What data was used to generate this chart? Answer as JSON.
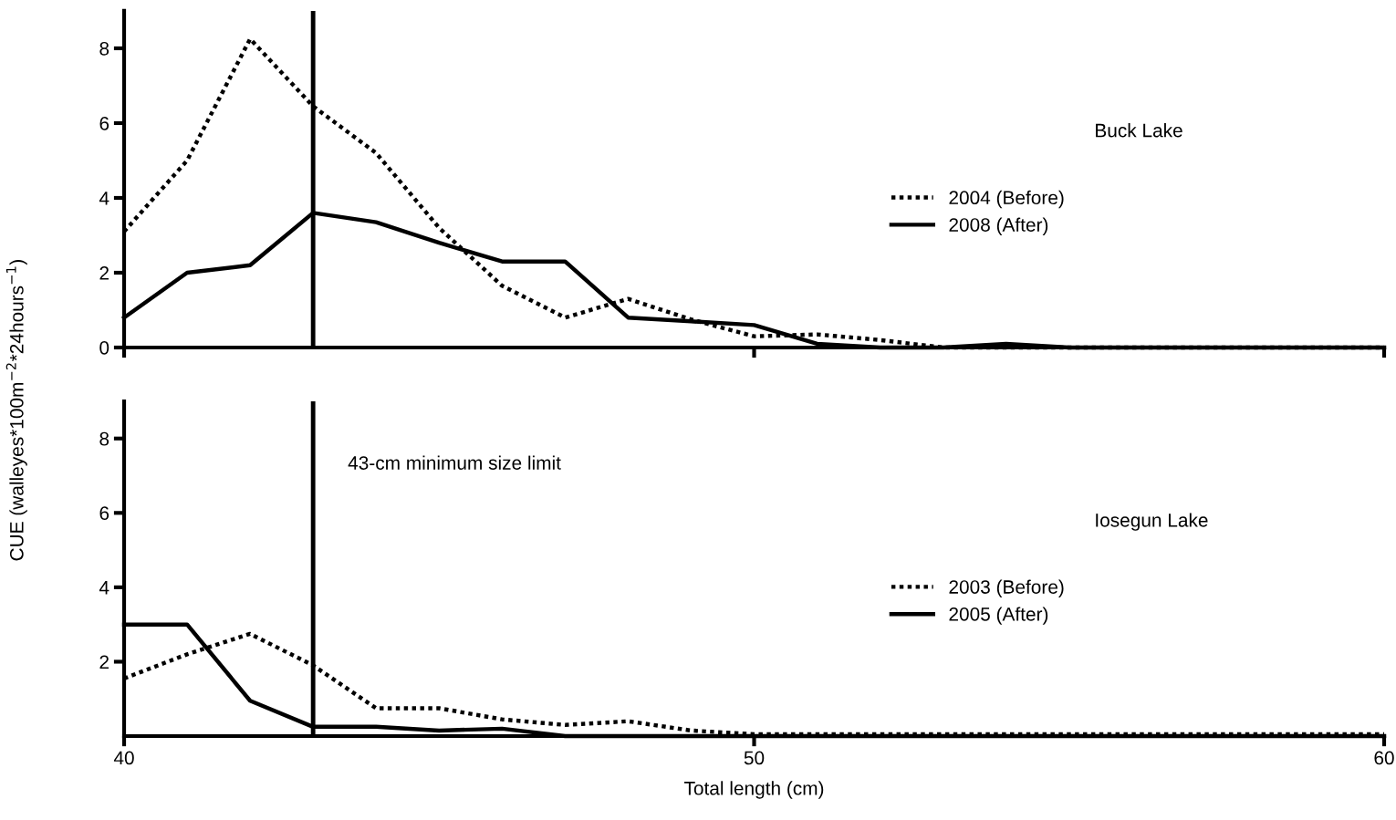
{
  "chart_data": [
    {
      "type": "line",
      "ylabel": "CUE (walleyes*100m$^{−2}$*24hours$^{−1}$)",
      "annotations": [
        "Buck Lake"
      ],
      "x": [
        40,
        41,
        42,
        43,
        44,
        45,
        46,
        47,
        48,
        49,
        50,
        51,
        52,
        53,
        54,
        55,
        56,
        57,
        58,
        59,
        60
      ],
      "series": [
        {
          "name": "2004 (Before)",
          "color": "#000000",
          "line_style": "dotted",
          "values": [
            3.1,
            5.0,
            8.25,
            6.45,
            5.2,
            3.2,
            1.65,
            0.8,
            1.3,
            0.75,
            0.3,
            0.35,
            0.2,
            0,
            0,
            0,
            0,
            0,
            0,
            0,
            0
          ]
        },
        {
          "name": "2008 (After)",
          "color": "#000000",
          "line_style": "solid",
          "values": [
            0.8,
            2.0,
            2.2,
            3.6,
            3.35,
            2.8,
            2.3,
            2.3,
            0.8,
            0.7,
            0.6,
            0.1,
            0,
            0,
            0.1,
            0,
            0,
            0,
            0,
            0,
            0
          ]
        }
      ],
      "xlim": [
        40,
        60
      ],
      "xticks": [
        40,
        50,
        60
      ],
      "ylim": [
        0,
        9
      ],
      "yticks": [
        0,
        2,
        4,
        6,
        8
      ],
      "tick_labels": "y",
      "legend": "right",
      "ref_lines": [
        {
          "axis": "x",
          "value": 43,
          "color": "#000000"
        }
      ]
    },
    {
      "type": "line",
      "xlabel": "Total length (cm)",
      "annotations": [
        "Iosegun Lake",
        {
          "text": "43-cm minimum size limit",
          "x": 43,
          "y": 7.3
        }
      ],
      "x": [
        40,
        41,
        42,
        43,
        44,
        45,
        46,
        47,
        48,
        49,
        50,
        51,
        52,
        53,
        54,
        55,
        56,
        57,
        58,
        59,
        60
      ],
      "series": [
        {
          "name": "2003 (Before)",
          "color": "#000000",
          "line_style": "dotted",
          "values": [
            1.55,
            2.2,
            2.75,
            1.9,
            0.75,
            0.75,
            0.45,
            0.3,
            0.4,
            0.15,
            0.05,
            0.05,
            0.05,
            0.05,
            0.05,
            0.05,
            0.05,
            0.05,
            0.05,
            0.05,
            0.05
          ]
        },
        {
          "name": "2005 (After)",
          "color": "#000000",
          "line_style": "solid",
          "values": [
            3.0,
            3.0,
            0.95,
            0.25,
            0.25,
            0.15,
            0.2,
            0,
            0,
            0,
            0,
            0,
            0,
            0,
            0,
            0,
            0,
            0,
            0,
            0,
            0
          ]
        }
      ],
      "xlim": [
        40,
        60
      ],
      "xticks": [
        40,
        50,
        60
      ],
      "ylim": [
        0,
        9
      ],
      "yticks": [
        2,
        4,
        6,
        8
      ],
      "legend": "right",
      "ref_lines": [
        {
          "axis": "x",
          "value": 43,
          "color": "#000000"
        }
      ]
    }
  ]
}
